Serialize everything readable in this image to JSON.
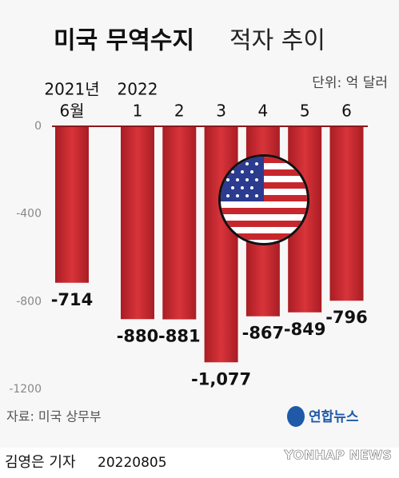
{
  "chart_data": {
    "type": "bar",
    "title": "미국 무역수지",
    "subtitle": "적자 추이",
    "unit": "단위: 억 달러",
    "year_labels": [
      "2021년",
      "2022",
      null,
      null,
      null,
      null,
      null
    ],
    "categories": [
      "6월",
      "1",
      "2",
      "3",
      "4",
      "5",
      "6"
    ],
    "values": [
      -714,
      -880,
      -881,
      -1077,
      -867,
      -849,
      -796
    ],
    "value_labels": [
      "-714",
      "-880",
      "-881",
      "-1,077",
      "-867",
      "-849",
      "-796"
    ],
    "color": "#c8262d",
    "ylim": [
      -1200,
      0
    ],
    "yticks": [
      0,
      -400,
      -800,
      -1200
    ],
    "grid": false,
    "source": "자료: 미국 상무부",
    "logo": "연합뉴스",
    "byline": "김영은 기자",
    "date": "20220805",
    "agency": "YONHAP NEWS"
  }
}
